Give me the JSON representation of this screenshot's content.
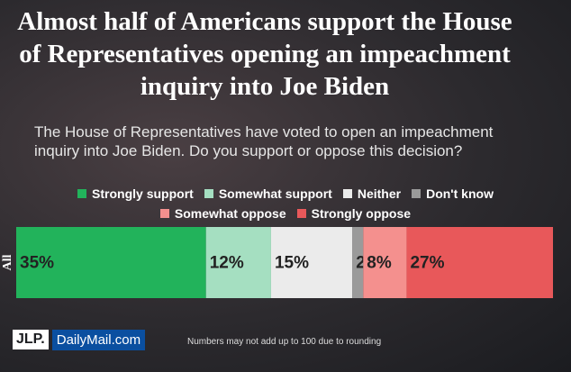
{
  "chart_data": {
    "type": "stacked_bar_horizontal",
    "title": "Almost half of Americans support the House of Representatives opening an impeachment inquiry into Joe Biden",
    "subtitle": "The House of Representatives have voted to open an impeachment inquiry into Joe Biden. Do you support or oppose this decision?",
    "categories": [
      "All"
    ],
    "series": [
      {
        "name": "Strongly support",
        "color": "#22b35b",
        "values": [
          35
        ],
        "value_labels": [
          "35%"
        ]
      },
      {
        "name": "Somewhat support",
        "color": "#a5dfc1",
        "values": [
          12
        ],
        "value_labels": [
          "12%"
        ]
      },
      {
        "name": "Neither",
        "color": "#ebebeb",
        "values": [
          15
        ],
        "value_labels": [
          "15%"
        ]
      },
      {
        "name": "Don't know",
        "color": "#9a9a9a",
        "values": [
          2
        ],
        "value_labels": [
          "2%"
        ]
      },
      {
        "name": "Somewhat oppose",
        "color": "#f4908e",
        "values": [
          8
        ],
        "value_labels": [
          "8%"
        ]
      },
      {
        "name": "Strongly oppose",
        "color": "#e8585a",
        "values": [
          27
        ],
        "value_labels": [
          "27%"
        ]
      }
    ],
    "legend_rows": [
      [
        0,
        1,
        2,
        3
      ],
      [
        4,
        5
      ]
    ],
    "logos": [
      "JLP.",
      "DailyMail.com"
    ],
    "note": "Numbers may not add up to 100 due to rounding"
  }
}
